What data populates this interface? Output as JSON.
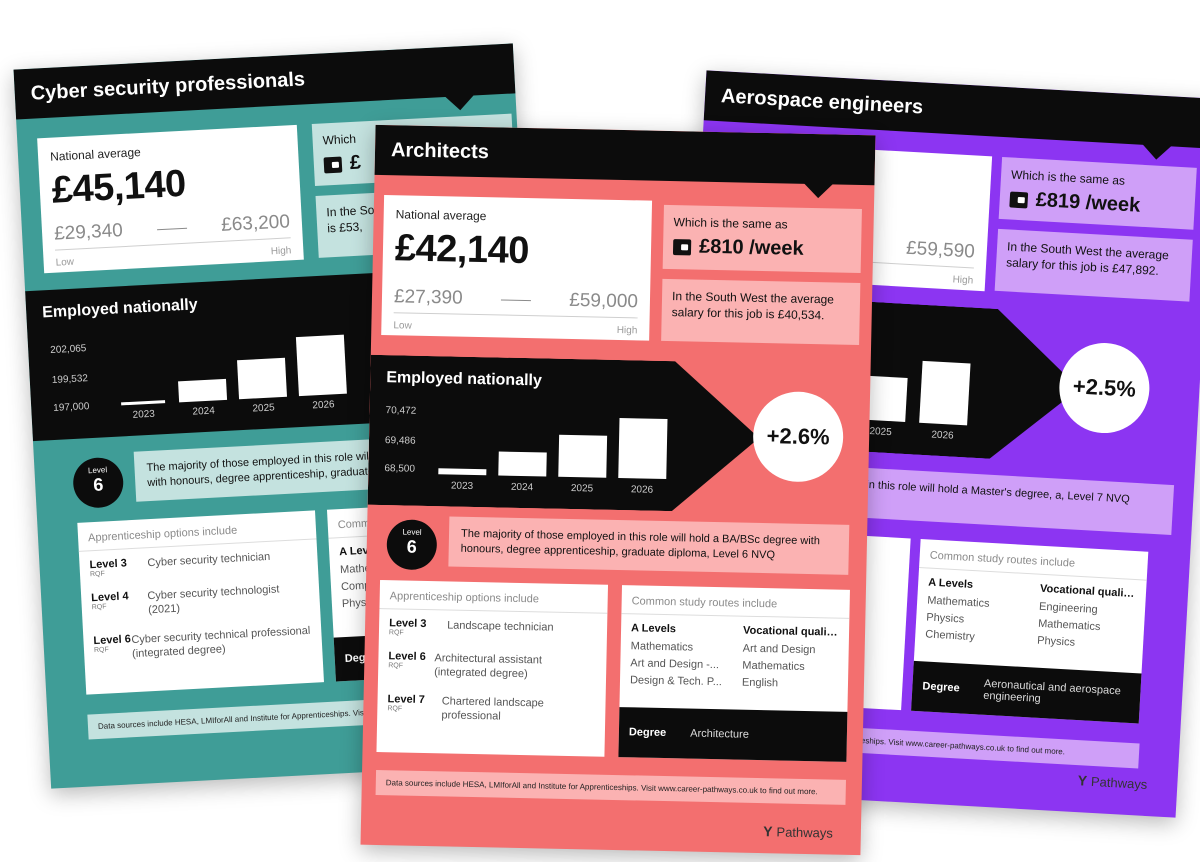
{
  "cards": {
    "cyber": {
      "title": "Cyber security professionals",
      "national_average_label": "National average",
      "national_average": "£45,140",
      "low": "£29,340",
      "high": "£63,200",
      "low_label": "Low",
      "high_label": "High",
      "week_label": "Which",
      "week_value": "£",
      "regional_text": "In the South West the average ... is £53,",
      "employed_title": "Employed nationally",
      "ticks": [
        "202,065",
        "199,532",
        "197,000"
      ],
      "years": [
        "2023",
        "2024",
        "2025",
        "2026"
      ],
      "level_small": "Level",
      "level_num": "6",
      "level_text": "The majority of those employed in this role will hold a BA/BSc degree with honours, degree apprenticeship, graduate diploma, Level 6 NVQ",
      "apprenticeship_header": "Apprenticeship options include",
      "apprenticeships": [
        {
          "level": "Level 3",
          "rqf": "RQF",
          "name": "Cyber security technician"
        },
        {
          "level": "Level 4",
          "rqf": "RQF",
          "name": "Cyber security technologist (2021)"
        },
        {
          "level": "Level 6",
          "rqf": "RQF",
          "name": "Cyber security technical professional (integrated degree)"
        }
      ],
      "routes_header": "Common",
      "routes_col1_header": "A Levels",
      "routes_col1": [
        "Mathem",
        "Comput",
        "Physics"
      ],
      "degree_label": "Degree",
      "footer": "Data sources include HESA, LMIforAll and Institute for Apprenticeships. Visit"
    },
    "aero": {
      "title": "Aerospace engineers",
      "high": "£59,590",
      "high_label": "High",
      "week_label": "Which is the same as",
      "week_value": "£819 /week",
      "regional_text": "In the South West the average salary for this job is £47,892.",
      "years": [
        "2025",
        "2026"
      ],
      "growth": "+2.5%",
      "level_text": "employed in this role will hold a Master's degree, a, Level 7 NVQ",
      "apprenticeship_fragment": "gree)",
      "routes_header": "Common study routes include",
      "routes_col1_header": "A Levels",
      "routes_col1": [
        "Mathematics",
        "Physics",
        "Chemistry"
      ],
      "routes_col2_header": "Vocational qualifi...",
      "routes_col2": [
        "Engineering",
        "Mathematics",
        "Physics"
      ],
      "degree_label": "Degree",
      "degree_value": "Aeronautical and aerospace engineering",
      "footer": "e for Apprenticeships. Visit www.career-pathways.co.uk to find out more.",
      "logo": "Pathways"
    },
    "arch": {
      "title": "Architects",
      "national_average_label": "National average",
      "national_average": "£42,140",
      "low": "£27,390",
      "high": "£59,000",
      "low_label": "Low",
      "high_label": "High",
      "week_label": "Which is the same as",
      "week_value": "£810 /week",
      "regional_text": "In the South West the average salary for this job is £40,534.",
      "employed_title": "Employed nationally",
      "ticks": [
        "70,472",
        "69,486",
        "68,500"
      ],
      "years": [
        "2023",
        "2024",
        "2025",
        "2026"
      ],
      "growth": "+2.6%",
      "level_small": "Level",
      "level_num": "6",
      "level_text": "The majority of those employed in this role will hold a BA/BSc degree with honours, degree apprenticeship, graduate diploma, Level 6 NVQ",
      "apprenticeship_header": "Apprenticeship options include",
      "apprenticeships": [
        {
          "level": "Level 3",
          "rqf": "RQF",
          "name": "Landscape technician"
        },
        {
          "level": "Level 6",
          "rqf": "RQF",
          "name": "Architectural assistant (integrated degree)"
        },
        {
          "level": "Level 7",
          "rqf": "RQF",
          "name": "Chartered landscape professional"
        }
      ],
      "routes_header": "Common study routes include",
      "routes_col1_header": "A Levels",
      "routes_col1": [
        "Mathematics",
        "Art and Design -...",
        "Design & Tech. P..."
      ],
      "routes_col2_header": "Vocational qualifi...",
      "routes_col2": [
        "Art and Design",
        "Mathematics",
        "English"
      ],
      "degree_label": "Degree",
      "degree_value": "Architecture",
      "footer": "Data sources include HESA, LMIforAll and Institute for Apprenticeships. Visit www.career-pathways.co.uk to find out more.",
      "logo": "Pathways"
    }
  },
  "colors": {
    "cyber": "#3f9d97",
    "aero": "#8c35f2",
    "arch": "#f36f6f",
    "dark": "#0c0c0c"
  }
}
